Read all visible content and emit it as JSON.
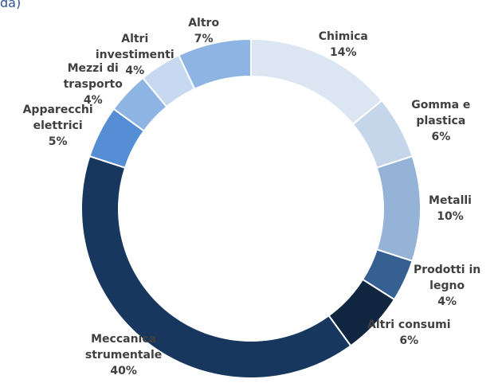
{
  "chart_data": {
    "type": "donut",
    "title": "da)",
    "categories": [
      "Chimica",
      "Gomma e plastica",
      "Metalli",
      "Prodotti in legno",
      "Altri consumi",
      "Meccanica strumentale",
      "Apparecchi elettrici",
      "Mezzi di trasporto",
      "Altri investimenti",
      "Altro"
    ],
    "values": [
      14,
      6,
      10,
      4,
      6,
      40,
      5,
      4,
      4,
      7
    ],
    "value_labels": [
      "14%",
      "6%",
      "10%",
      "4%",
      "6%",
      "40%",
      "5%",
      "4%",
      "4%",
      "7%"
    ],
    "colors": [
      "#dce6f2",
      "#c5d5ea",
      "#95b3d7",
      "#376092",
      "#10253f",
      "#17375e",
      "#558ed5",
      "#8eb4e3",
      "#c6d9f1",
      "#8eb4e3"
    ]
  }
}
